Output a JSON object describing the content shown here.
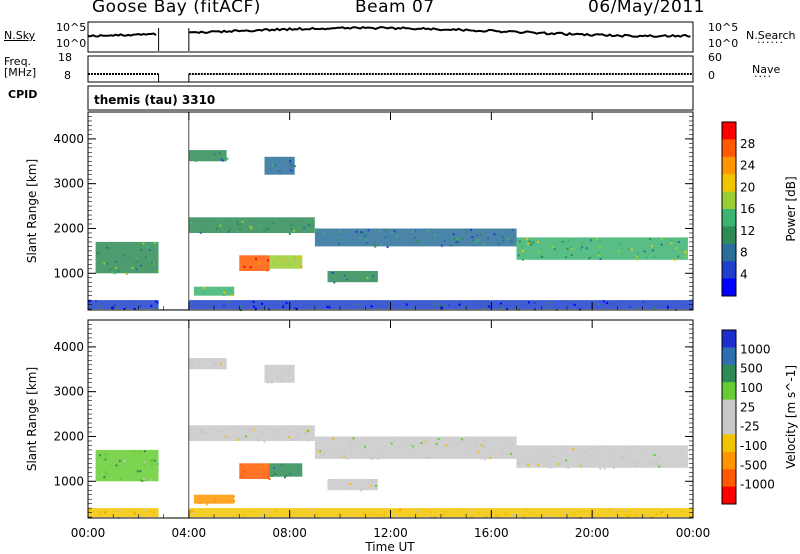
{
  "header": {
    "title": "Goose Bay (fitACF)",
    "beam": "Beam 07",
    "date": "06/May/2011"
  },
  "top_panels": {
    "nsky_label": "N.Sky",
    "nsky_ticks": [
      "10^5",
      "10^0"
    ],
    "nsearch_label": "N.Search",
    "nsearch_ticks": [
      "10^5",
      "10^0"
    ],
    "freq_label_line1": "Freq.",
    "freq_label_line2": "[MHz]",
    "freq_ticks": [
      "18",
      "8"
    ],
    "nave_label": "Nave",
    "nave_ticks": [
      "60",
      "0"
    ],
    "cpid_label": "CPID",
    "cpid_value": "themis (tau) 3310"
  },
  "axes": {
    "ylabel": "Slant Range [km]",
    "xlabel": "Time UT",
    "y_ticks": [
      "4000",
      "3000",
      "2000",
      "1000"
    ],
    "x_ticks": [
      "00:00",
      "04:00",
      "08:00",
      "12:00",
      "16:00",
      "20:00",
      "00:00"
    ]
  },
  "colorbars": {
    "power": {
      "label": "Power [dB]",
      "ticks": [
        "28",
        "24",
        "20",
        "16",
        "12",
        "8",
        "4"
      ],
      "colors": [
        "#ff0000",
        "#ff5a00",
        "#ff9600",
        "#f2c400",
        "#9acd32",
        "#3cb371",
        "#2e8b57",
        "#2a6e9a",
        "#1f3fcc",
        "#0000ff"
      ]
    },
    "velocity": {
      "label": "Velocity [m s^-1]",
      "ticks": [
        "1000",
        "500",
        "100",
        "25",
        "-25",
        "-100",
        "-500",
        "-1000"
      ],
      "colors": [
        "#1e2ecc",
        "#2e6fb0",
        "#2e8b57",
        "#66cc33",
        "#c8c8c8",
        "#c8c8c8",
        "#f2c400",
        "#ff9600",
        "#ff5a00",
        "#ff0000"
      ]
    }
  },
  "chart_data": [
    {
      "type": "heatmap",
      "title": "",
      "quantity": "Power",
      "units": "dB",
      "xlabel": "Time UT",
      "ylabel": "Slant Range [km]",
      "xlim": [
        0,
        24
      ],
      "ylim": [
        180,
        4600
      ],
      "clim": [
        0,
        30
      ],
      "data_gap_hours": [
        [
          2.8,
          4.0
        ]
      ],
      "regions": [
        {
          "t": [
            4.0,
            5.5
          ],
          "range": [
            3500,
            3750
          ],
          "value": 10
        },
        {
          "t": [
            7.0,
            8.2
          ],
          "range": [
            3200,
            3600
          ],
          "value": 8
        },
        {
          "t": [
            4.0,
            9.0
          ],
          "range": [
            1900,
            2250
          ],
          "value": 12
        },
        {
          "t": [
            9.0,
            17.0
          ],
          "range": [
            1600,
            2000
          ],
          "value": 9
        },
        {
          "t": [
            17.0,
            23.8
          ],
          "range": [
            1300,
            1800
          ],
          "value": 14
        },
        {
          "t": [
            0.3,
            2.8
          ],
          "range": [
            1000,
            1700
          ],
          "value": 12
        },
        {
          "t": [
            6.0,
            7.2
          ],
          "range": [
            1050,
            1400
          ],
          "value": 24
        },
        {
          "t": [
            7.2,
            8.5
          ],
          "range": [
            1100,
            1400
          ],
          "value": 18
        },
        {
          "t": [
            9.5,
            11.5
          ],
          "range": [
            800,
            1050
          ],
          "value": 10
        },
        {
          "t": [
            4.2,
            5.8
          ],
          "range": [
            500,
            700
          ],
          "value": 14
        },
        {
          "t": [
            0.0,
            24.0
          ],
          "range": [
            200,
            400
          ],
          "value": 6
        }
      ]
    },
    {
      "type": "heatmap",
      "title": "",
      "quantity": "Velocity",
      "units": "m s^-1",
      "xlabel": "Time UT",
      "ylabel": "Slant Range [km]",
      "xlim": [
        0,
        24
      ],
      "ylim": [
        180,
        4600
      ],
      "clim": [
        -1000,
        1000
      ],
      "data_gap_hours": [
        [
          2.8,
          4.0
        ]
      ],
      "regions": [
        {
          "t": [
            4.0,
            5.5
          ],
          "range": [
            3500,
            3750
          ],
          "value": 0
        },
        {
          "t": [
            7.0,
            8.2
          ],
          "range": [
            3200,
            3600
          ],
          "value": 0
        },
        {
          "t": [
            4.0,
            9.0
          ],
          "range": [
            1900,
            2250
          ],
          "value": 0
        },
        {
          "t": [
            9.0,
            17.0
          ],
          "range": [
            1500,
            2000
          ],
          "value": 0
        },
        {
          "t": [
            17.0,
            23.8
          ],
          "range": [
            1300,
            1800
          ],
          "value": 0
        },
        {
          "t": [
            0.3,
            2.8
          ],
          "range": [
            1000,
            1700
          ],
          "value": 80
        },
        {
          "t": [
            6.0,
            7.2
          ],
          "range": [
            1050,
            1400
          ],
          "value": -300
        },
        {
          "t": [
            7.2,
            8.5
          ],
          "range": [
            1100,
            1400
          ],
          "value": 200
        },
        {
          "t": [
            9.5,
            11.5
          ],
          "range": [
            800,
            1050
          ],
          "value": 0
        },
        {
          "t": [
            4.2,
            5.8
          ],
          "range": [
            500,
            700
          ],
          "value": -150
        },
        {
          "t": [
            0.0,
            24.0
          ],
          "range": [
            200,
            400
          ],
          "value": -50
        }
      ]
    }
  ]
}
